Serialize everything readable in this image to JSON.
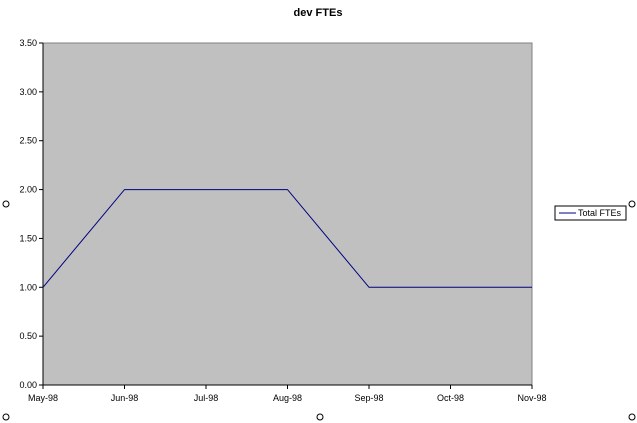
{
  "chart_data": {
    "type": "line",
    "title": "dev FTEs",
    "categories": [
      "May-98",
      "Jun-98",
      "Jul-98",
      "Aug-98",
      "Sep-98",
      "Oct-98",
      "Nov-98"
    ],
    "series": [
      {
        "name": "Total FTEs",
        "values": [
          1.0,
          2.0,
          2.0,
          2.0,
          1.0,
          1.0,
          1.0
        ]
      }
    ],
    "ylim": [
      0,
      3.5
    ],
    "yticks": [
      "0.00",
      "0.50",
      "1.00",
      "1.50",
      "2.00",
      "2.50",
      "3.00",
      "3.50"
    ],
    "grid": false,
    "legend_position": "right",
    "colors": {
      "plot_background": "#c0c0c0",
      "line": "#000080",
      "border": "#808080"
    }
  }
}
